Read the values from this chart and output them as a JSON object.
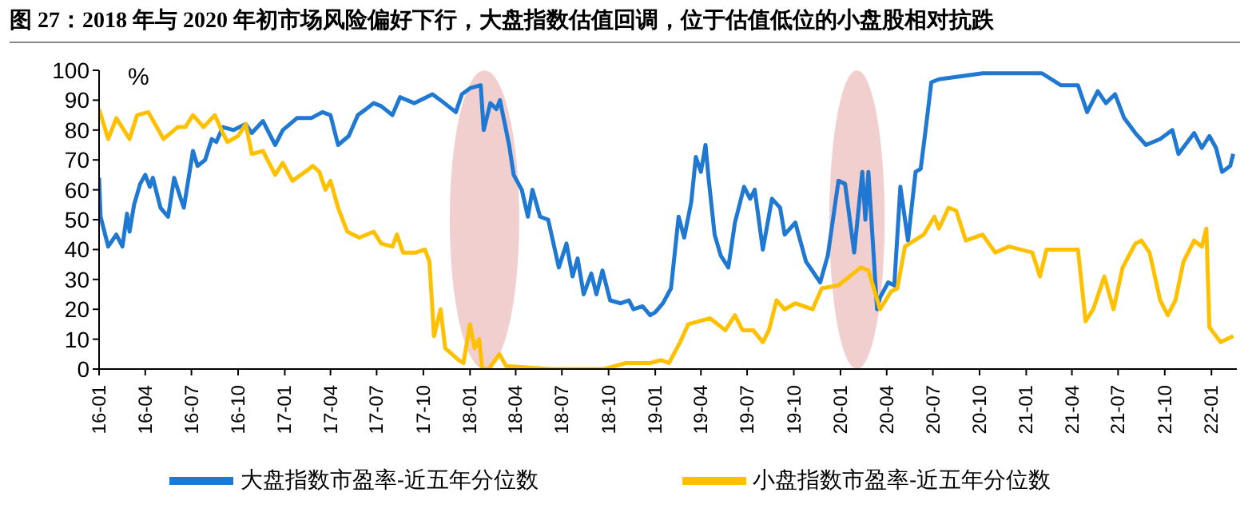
{
  "chart_data": {
    "type": "line",
    "title": "图 27：2018 年与 2020 年初市场风险偏好下行，大盘指数估值回调，位于估值低位的小盘股相对抗跌",
    "ylabel": "%",
    "xlim": [
      "2016-01-01",
      "2022-02-20"
    ],
    "xticks": [
      {
        "value": "2016-01-01",
        "label": "16-01"
      },
      {
        "value": "2016-04-01",
        "label": "16-04"
      },
      {
        "value": "2016-07-01",
        "label": "16-07"
      },
      {
        "value": "2016-10-01",
        "label": "16-10"
      },
      {
        "value": "2017-01-01",
        "label": "17-01"
      },
      {
        "value": "2017-04-01",
        "label": "17-04"
      },
      {
        "value": "2017-07-01",
        "label": "17-07"
      },
      {
        "value": "2017-10-01",
        "label": "17-10"
      },
      {
        "value": "2018-01-01",
        "label": "18-01"
      },
      {
        "value": "2018-04-01",
        "label": "18-04"
      },
      {
        "value": "2018-07-01",
        "label": "18-07"
      },
      {
        "value": "2018-10-01",
        "label": "18-10"
      },
      {
        "value": "2019-01-01",
        "label": "19-01"
      },
      {
        "value": "2019-04-01",
        "label": "19-04"
      },
      {
        "value": "2019-07-01",
        "label": "19-07"
      },
      {
        "value": "2019-10-01",
        "label": "19-10"
      },
      {
        "value": "2020-01-01",
        "label": "20-01"
      },
      {
        "value": "2020-04-01",
        "label": "20-04"
      },
      {
        "value": "2020-07-01",
        "label": "20-07"
      },
      {
        "value": "2020-10-01",
        "label": "20-10"
      },
      {
        "value": "2021-01-01",
        "label": "21-01"
      },
      {
        "value": "2021-04-01",
        "label": "21-04"
      },
      {
        "value": "2021-07-01",
        "label": "21-07"
      },
      {
        "value": "2021-10-01",
        "label": "21-10"
      },
      {
        "value": "2022-01-01",
        "label": "22-01"
      }
    ],
    "ylim": [
      0,
      100
    ],
    "yticks": [
      0,
      10,
      20,
      30,
      40,
      50,
      60,
      70,
      80,
      90,
      100
    ],
    "grid": false,
    "legend": "bottom",
    "marker": "none",
    "line_style": "solid",
    "series": [
      {
        "name": "大盘指数市盈率-近五年分位数",
        "color": "#1f78d1",
        "x": [
          "2016-01-01",
          "2016-01-04",
          "2016-01-19",
          "2016-02-04",
          "2016-02-16",
          "2016-02-25",
          "2016-03-01",
          "2016-03-10",
          "2016-03-22",
          "2016-04-01",
          "2016-04-10",
          "2016-04-16",
          "2016-05-01",
          "2016-05-16",
          "2016-05-28",
          "2016-06-10",
          "2016-06-16",
          "2016-07-04",
          "2016-07-13",
          "2016-07-28",
          "2016-08-10",
          "2016-08-19",
          "2016-09-01",
          "2016-09-22",
          "2016-10-16",
          "2016-10-28",
          "2016-11-19",
          "2016-11-28",
          "2016-12-13",
          "2016-12-28",
          "2017-01-25",
          "2017-02-22",
          "2017-03-16",
          "2017-04-01",
          "2017-04-16",
          "2017-05-07",
          "2017-05-25",
          "2017-06-10",
          "2017-06-25",
          "2017-07-10",
          "2017-08-01",
          "2017-08-16",
          "2017-09-13",
          "2017-10-19",
          "2017-11-04",
          "2017-12-04",
          "2017-12-16",
          "2018-01-01",
          "2018-01-22",
          "2018-01-28",
          "2018-02-10",
          "2018-02-22",
          "2018-03-01",
          "2018-03-19",
          "2018-03-28",
          "2018-04-13",
          "2018-04-25",
          "2018-05-04",
          "2018-05-19",
          "2018-06-04",
          "2018-06-25",
          "2018-07-10",
          "2018-07-22",
          "2018-08-01",
          "2018-08-13",
          "2018-08-28",
          "2018-09-07",
          "2018-09-19",
          "2018-10-04",
          "2018-10-25",
          "2018-11-10",
          "2018-11-19",
          "2018-12-07",
          "2018-12-22",
          "2019-01-01",
          "2019-01-16",
          "2019-02-01",
          "2019-02-16",
          "2019-02-27",
          "2019-03-13",
          "2019-03-22",
          "2019-04-01",
          "2019-04-10",
          "2019-04-16",
          "2019-04-28",
          "2019-05-10",
          "2019-05-25",
          "2019-06-07",
          "2019-06-16",
          "2019-06-25",
          "2019-07-07",
          "2019-07-16",
          "2019-08-01",
          "2019-08-19",
          "2019-09-04",
          "2019-09-13",
          "2019-10-04",
          "2019-10-25",
          "2019-11-22",
          "2019-12-07",
          "2019-12-28",
          "2020-01-10",
          "2020-01-28",
          "2020-02-13",
          "2020-02-19",
          "2020-02-25",
          "2020-03-13",
          "2020-03-19",
          "2020-04-04",
          "2020-04-16",
          "2020-04-28",
          "2020-05-13",
          "2020-05-28",
          "2020-06-07",
          "2020-06-16",
          "2020-06-28",
          "2020-07-13",
          "2020-08-25",
          "2020-10-07",
          "2020-11-28",
          "2021-02-01",
          "2021-03-10",
          "2021-04-13",
          "2021-05-01",
          "2021-05-22",
          "2021-06-07",
          "2021-06-25",
          "2021-07-13",
          "2021-08-04",
          "2021-08-25",
          "2021-09-22",
          "2021-10-16",
          "2021-10-28",
          "2021-11-28",
          "2021-12-13",
          "2021-12-28",
          "2022-01-10",
          "2022-01-22",
          "2022-02-07",
          "2022-02-13"
        ],
        "values": [
          64,
          51,
          41,
          45,
          41,
          52,
          46,
          55,
          62,
          65,
          61,
          64,
          54,
          51,
          64,
          57,
          54,
          73,
          68,
          70,
          77,
          76,
          81,
          80,
          82,
          79,
          83,
          80,
          75,
          80,
          84,
          84,
          86,
          85,
          75,
          78,
          85,
          87,
          89,
          88,
          85,
          91,
          89,
          92,
          90,
          86,
          92,
          94,
          95,
          80,
          89,
          87,
          90,
          75,
          65,
          60,
          51,
          60,
          51,
          50,
          34,
          42,
          31,
          37,
          25,
          32,
          25,
          33,
          23,
          22,
          23,
          20,
          21,
          18,
          19,
          22,
          27,
          51,
          44,
          56,
          71,
          66,
          75,
          64,
          45,
          38,
          34,
          49,
          55,
          61,
          57,
          60,
          40,
          57,
          54,
          45,
          49,
          36,
          29,
          38,
          63,
          62,
          39,
          66,
          50,
          66,
          20,
          24,
          29,
          28,
          61,
          43,
          66,
          67,
          79,
          96,
          97,
          98,
          99,
          99,
          99,
          95,
          95,
          86,
          93,
          89,
          92,
          84,
          79,
          75,
          77,
          80,
          72,
          79,
          74,
          78,
          74,
          66,
          68,
          72
        ]
      },
      {
        "name": "小盘指数市盈率-近五年分位数",
        "color": "#ffc000",
        "x": [
          "2016-01-01",
          "2016-01-19",
          "2016-02-04",
          "2016-03-01",
          "2016-03-16",
          "2016-04-07",
          "2016-05-07",
          "2016-06-04",
          "2016-06-19",
          "2016-07-04",
          "2016-07-25",
          "2016-08-16",
          "2016-09-01",
          "2016-09-10",
          "2016-10-01",
          "2016-10-16",
          "2016-10-28",
          "2016-11-19",
          "2016-12-13",
          "2016-12-28",
          "2017-01-16",
          "2017-02-10",
          "2017-02-25",
          "2017-03-10",
          "2017-03-22",
          "2017-04-01",
          "2017-04-16",
          "2017-05-04",
          "2017-05-28",
          "2017-06-25",
          "2017-07-10",
          "2017-08-01",
          "2017-08-10",
          "2017-08-22",
          "2017-09-16",
          "2017-10-04",
          "2017-10-13",
          "2017-10-22",
          "2017-11-04",
          "2017-11-13",
          "2017-12-10",
          "2017-12-19",
          "2018-01-01",
          "2018-01-10",
          "2018-01-19",
          "2018-01-25",
          "2018-02-07",
          "2018-02-28",
          "2018-03-13",
          "2018-06-10",
          "2018-09-22",
          "2018-11-04",
          "2018-12-22",
          "2019-01-13",
          "2019-01-28",
          "2019-02-19",
          "2019-03-07",
          "2019-04-19",
          "2019-05-19",
          "2019-06-07",
          "2019-06-22",
          "2019-07-13",
          "2019-08-01",
          "2019-08-13",
          "2019-08-28",
          "2019-09-13",
          "2019-10-04",
          "2019-11-07",
          "2019-11-25",
          "2019-12-28",
          "2020-01-19",
          "2020-02-10",
          "2020-02-25",
          "2020-03-19",
          "2020-04-10",
          "2020-04-22",
          "2020-05-07",
          "2020-06-13",
          "2020-07-04",
          "2020-07-13",
          "2020-08-01",
          "2020-08-16",
          "2020-09-04",
          "2020-10-07",
          "2020-11-01",
          "2020-11-28",
          "2021-01-13",
          "2021-01-28",
          "2021-02-10",
          "2021-04-13",
          "2021-04-28",
          "2021-05-13",
          "2021-06-04",
          "2021-06-22",
          "2021-07-10",
          "2021-08-04",
          "2021-08-16",
          "2021-09-01",
          "2021-09-22",
          "2021-10-07",
          "2021-10-22",
          "2021-11-07",
          "2021-11-28",
          "2021-12-13",
          "2021-12-22",
          "2021-12-28",
          "2022-01-19",
          "2022-02-13"
        ],
        "values": [
          87,
          77,
          84,
          77,
          85,
          86,
          77,
          81,
          81,
          85,
          81,
          85,
          79,
          76,
          78,
          82,
          72,
          73,
          65,
          69,
          63,
          66,
          68,
          66,
          60,
          63,
          54,
          46,
          44,
          46,
          42,
          41,
          45,
          39,
          39,
          40,
          36,
          11,
          20,
          7,
          3,
          2,
          15,
          7,
          10,
          0,
          0,
          5,
          1,
          0,
          0,
          2,
          2,
          3,
          2,
          9,
          15,
          17,
          13,
          18,
          13,
          13,
          9,
          13,
          23,
          20,
          22,
          20,
          27,
          28,
          31,
          34,
          33,
          20,
          26,
          27,
          41,
          45,
          51,
          47,
          54,
          53,
          43,
          45,
          39,
          41,
          39,
          31,
          40,
          40,
          16,
          20,
          31,
          20,
          34,
          42,
          43,
          39,
          23,
          18,
          23,
          36,
          43,
          41,
          47,
          14,
          9,
          11
        ]
      }
    ]
  }
}
